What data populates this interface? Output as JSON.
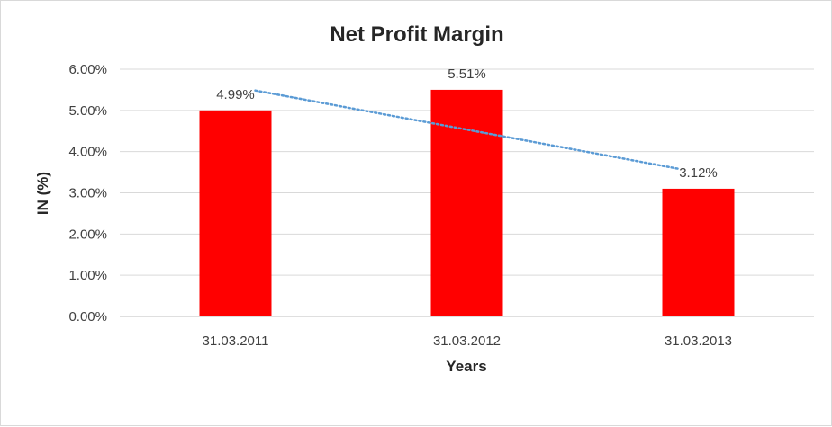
{
  "chart_data": {
    "type": "bar",
    "title": "Net Profit Margin",
    "xlabel": "Years",
    "ylabel": "IN (%)",
    "categories": [
      "31.03.2011",
      "31.03.2012",
      "31.03.2013"
    ],
    "series": [
      {
        "values": [
          5.0,
          5.5,
          3.1
        ],
        "data_labels": [
          "4.99%",
          "5.51%",
          "3.12%"
        ],
        "color": "#ff0000"
      }
    ],
    "trendline": {
      "type": "linear",
      "style": "dotted",
      "color": "#5b9bd5"
    },
    "ylim": [
      0,
      6
    ],
    "y_ticks": [
      0,
      1,
      2,
      3,
      4,
      5,
      6
    ],
    "y_tick_labels": [
      "0.00%",
      "1.00%",
      "2.00%",
      "3.00%",
      "4.00%",
      "5.00%",
      "6.00%"
    ],
    "grid": true,
    "legend": "none"
  }
}
